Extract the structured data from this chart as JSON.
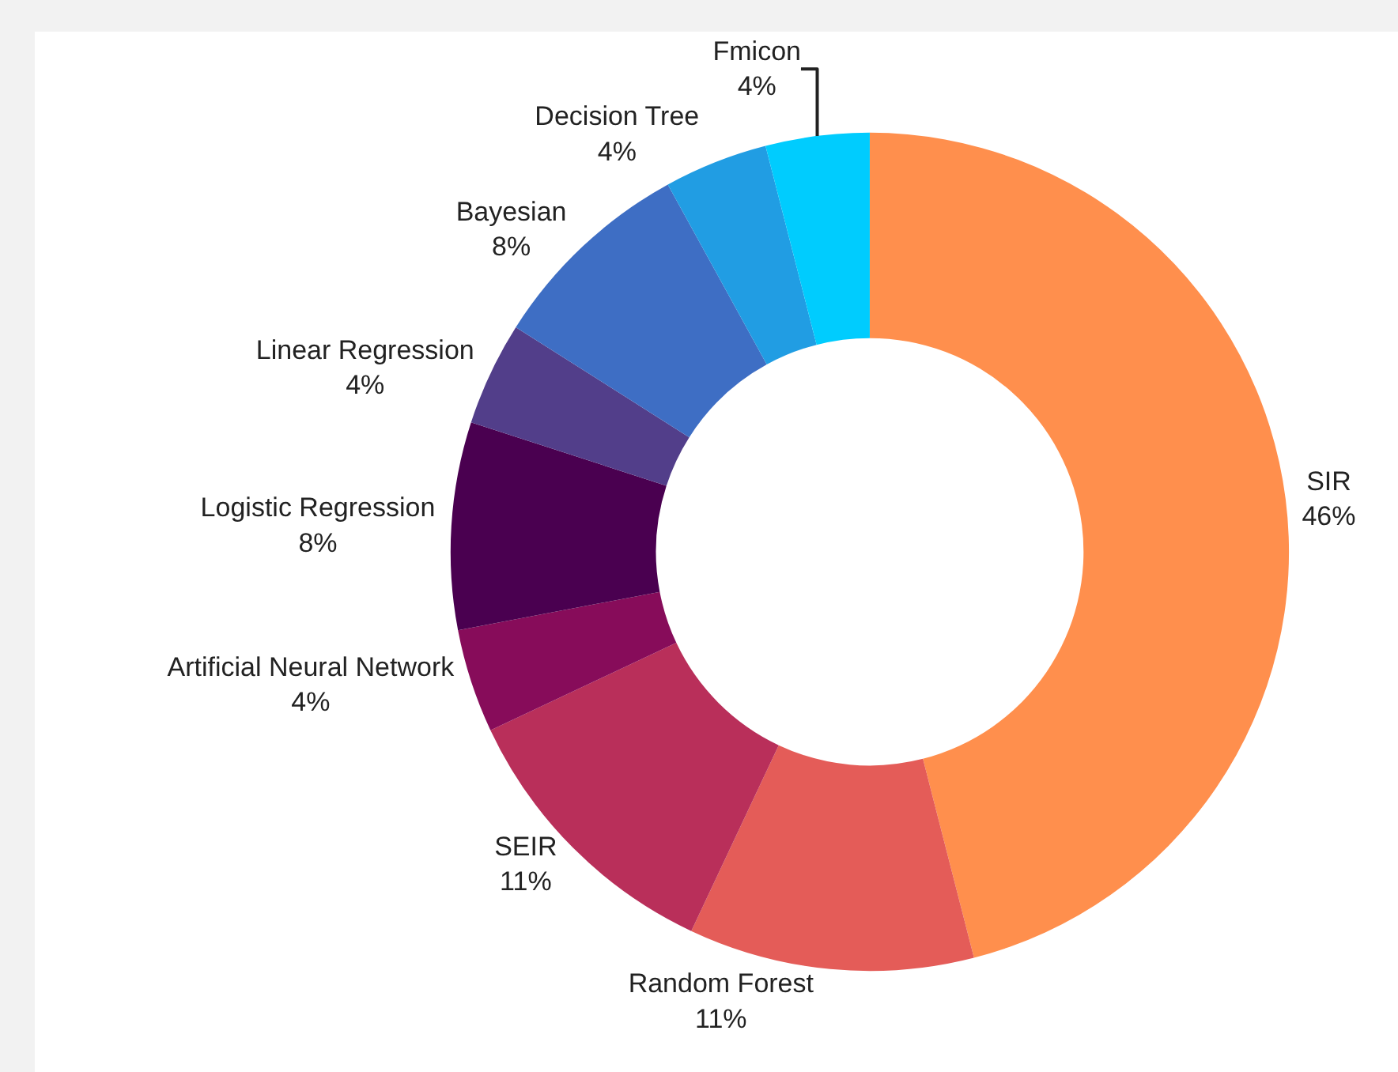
{
  "chart_data": {
    "type": "donut",
    "categories": [
      "SIR",
      "Random Forest",
      "SEIR",
      "Artificial Neural Network",
      "Logistic Regression",
      "Linear Regression",
      "Bayesian",
      "Decision Tree",
      "Fmicon"
    ],
    "values": [
      46,
      11,
      11,
      4,
      8,
      4,
      8,
      4,
      4
    ],
    "value_labels": [
      "46%",
      "11%",
      "11%",
      "4%",
      "8%",
      "4%",
      "8%",
      "4%",
      "4%"
    ],
    "colors": [
      "#ff8f4d",
      "#e45c58",
      "#b92f5a",
      "#870c5a",
      "#4a0050",
      "#523e8a",
      "#3e6ec4",
      "#219de3",
      "#00ccfe"
    ],
    "legend": false
  }
}
